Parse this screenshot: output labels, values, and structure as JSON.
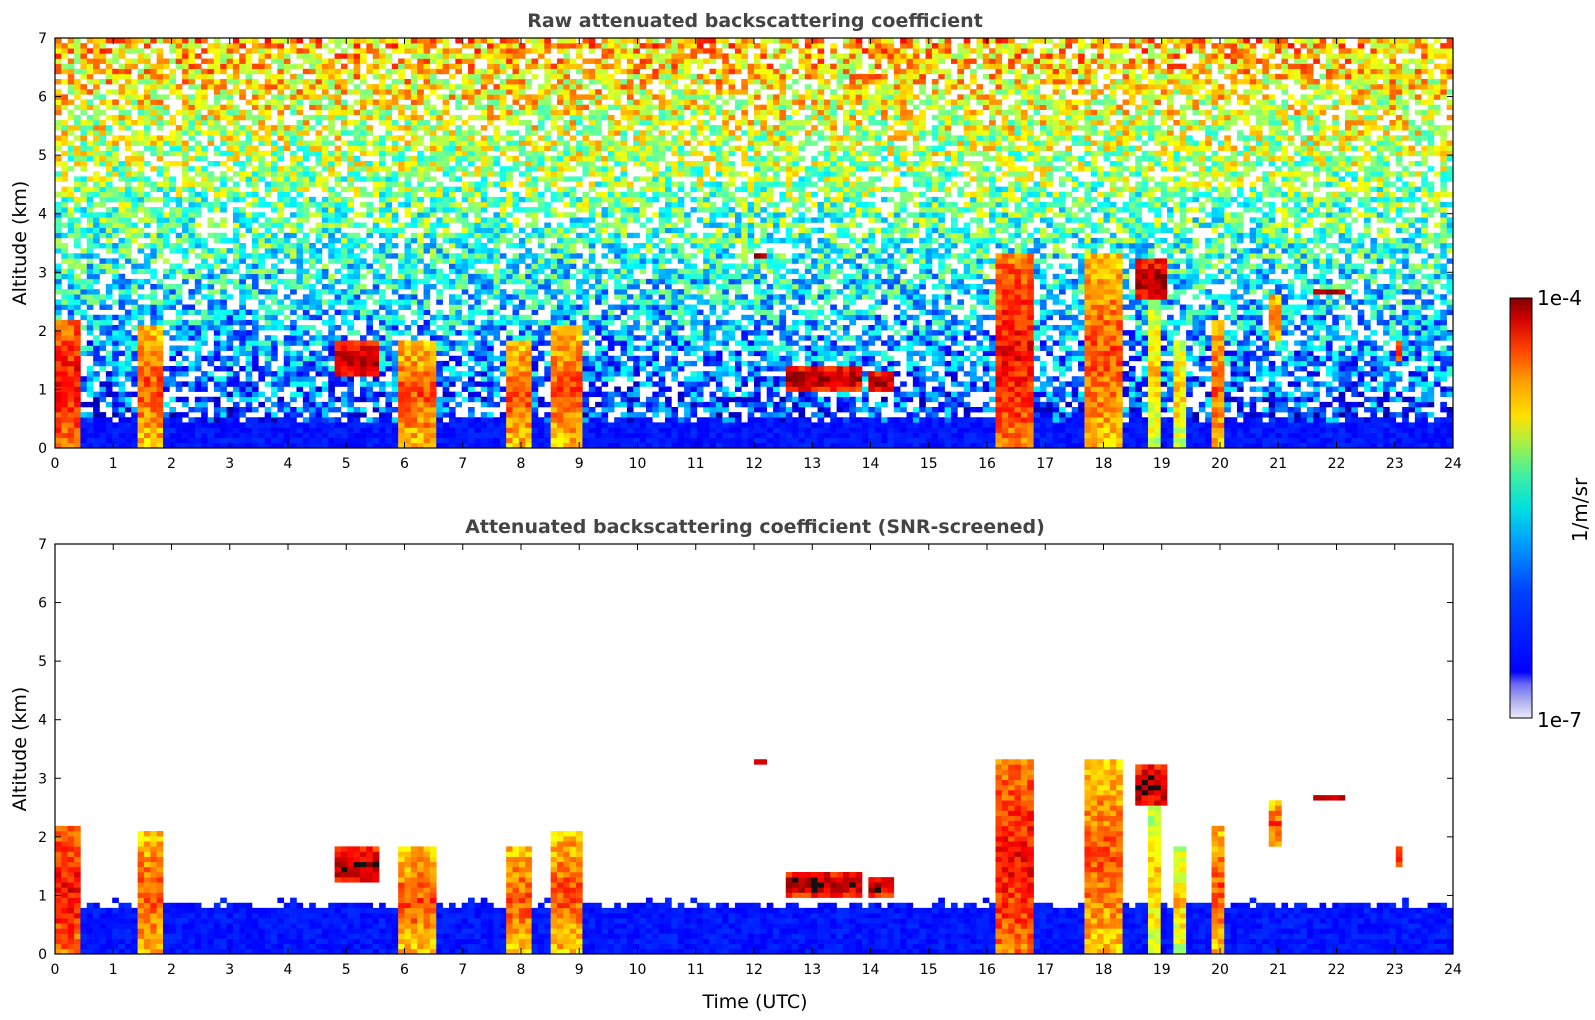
{
  "chart_data": [
    {
      "type": "heatmap",
      "title": "Raw attenuated backscattering coefficient",
      "xlabel": "",
      "ylabel": "Altitude (km)",
      "xlim": [
        0,
        24
      ],
      "ylim": [
        0,
        7
      ],
      "x_ticks": [
        "0",
        "1",
        "2",
        "3",
        "4",
        "5",
        "6",
        "7",
        "8",
        "9",
        "10",
        "11",
        "12",
        "13",
        "14",
        "15",
        "16",
        "17",
        "18",
        "19",
        "20",
        "21",
        "22",
        "23",
        "24"
      ],
      "y_ticks": [
        "0",
        "1",
        "2",
        "3",
        "4",
        "5",
        "6",
        "7"
      ],
      "screened": false,
      "boundary_layer_top_km": 0.5,
      "cloud_features": [
        {
          "t_start": 0.0,
          "t_end": 0.45,
          "z_base": 0.0,
          "z_top": 2.2,
          "peak": "red"
        },
        {
          "t_start": 1.4,
          "t_end": 1.8,
          "z_base": 0.0,
          "z_top": 2.1,
          "peak": "orange"
        },
        {
          "t_start": 5.9,
          "t_end": 6.6,
          "z_base": 0.0,
          "z_top": 1.8,
          "peak": "orange"
        },
        {
          "t_start": 7.8,
          "t_end": 8.2,
          "z_base": 0.0,
          "z_top": 1.8,
          "peak": "orange"
        },
        {
          "t_start": 8.5,
          "t_end": 9.0,
          "z_base": 0.0,
          "z_top": 2.1,
          "peak": "orange"
        },
        {
          "t_start": 16.2,
          "t_end": 16.8,
          "z_base": 0.0,
          "z_top": 3.3,
          "peak": "red"
        },
        {
          "t_start": 17.7,
          "t_end": 18.3,
          "z_base": 0.0,
          "z_top": 3.3,
          "peak": "orange"
        },
        {
          "t_start": 18.8,
          "t_end": 19.0,
          "z_base": 0.0,
          "z_top": 2.5,
          "peak": "yellow"
        },
        {
          "t_start": 19.2,
          "t_end": 19.4,
          "z_base": 0.0,
          "z_top": 1.8,
          "peak": "yellow"
        },
        {
          "t_start": 19.8,
          "t_end": 20.1,
          "z_base": 0.0,
          "z_top": 2.2,
          "peak": "orange"
        },
        {
          "t_start": 4.8,
          "t_end": 5.6,
          "z_base": 1.2,
          "z_top": 1.8,
          "peak": "darkred"
        },
        {
          "t_start": 12.6,
          "t_end": 13.8,
          "z_base": 1.0,
          "z_top": 1.4,
          "peak": "darkred"
        },
        {
          "t_start": 14.0,
          "t_end": 14.4,
          "z_base": 1.0,
          "z_top": 1.3,
          "peak": "darkred"
        },
        {
          "t_start": 12.0,
          "t_end": 12.2,
          "z_base": 3.2,
          "z_top": 3.35,
          "peak": "darkred"
        },
        {
          "t_start": 21.6,
          "t_end": 22.2,
          "z_base": 2.6,
          "z_top": 2.75,
          "peak": "darkred"
        },
        {
          "t_start": 20.8,
          "t_end": 21.1,
          "z_base": 1.8,
          "z_top": 2.6,
          "peak": "orange"
        },
        {
          "t_start": 18.5,
          "t_end": 19.1,
          "z_base": 2.5,
          "z_top": 3.2,
          "peak": "darkred"
        },
        {
          "t_start": 23.0,
          "t_end": 23.1,
          "z_base": 1.5,
          "z_top": 1.8,
          "peak": "red"
        }
      ]
    },
    {
      "type": "heatmap",
      "title": "Attenuated backscattering coefficient (SNR-screened)",
      "xlabel": "Time (UTC)",
      "ylabel": "Altitude (km)",
      "xlim": [
        0,
        24
      ],
      "ylim": [
        0,
        7
      ],
      "x_ticks": [
        "0",
        "1",
        "2",
        "3",
        "4",
        "5",
        "6",
        "7",
        "8",
        "9",
        "10",
        "11",
        "12",
        "13",
        "14",
        "15",
        "16",
        "17",
        "18",
        "19",
        "20",
        "21",
        "22",
        "23",
        "24"
      ],
      "y_ticks": [
        "0",
        "1",
        "2",
        "3",
        "4",
        "5",
        "6",
        "7"
      ],
      "screened": true,
      "boundary_layer_top_km": 0.85
    }
  ],
  "colorbar": {
    "label": "1/m/sr",
    "max_label": "1e-4",
    "min_label": "1e-7",
    "scale": "log",
    "range": [
      1e-07,
      0.0001
    ],
    "colormap": "jet"
  }
}
